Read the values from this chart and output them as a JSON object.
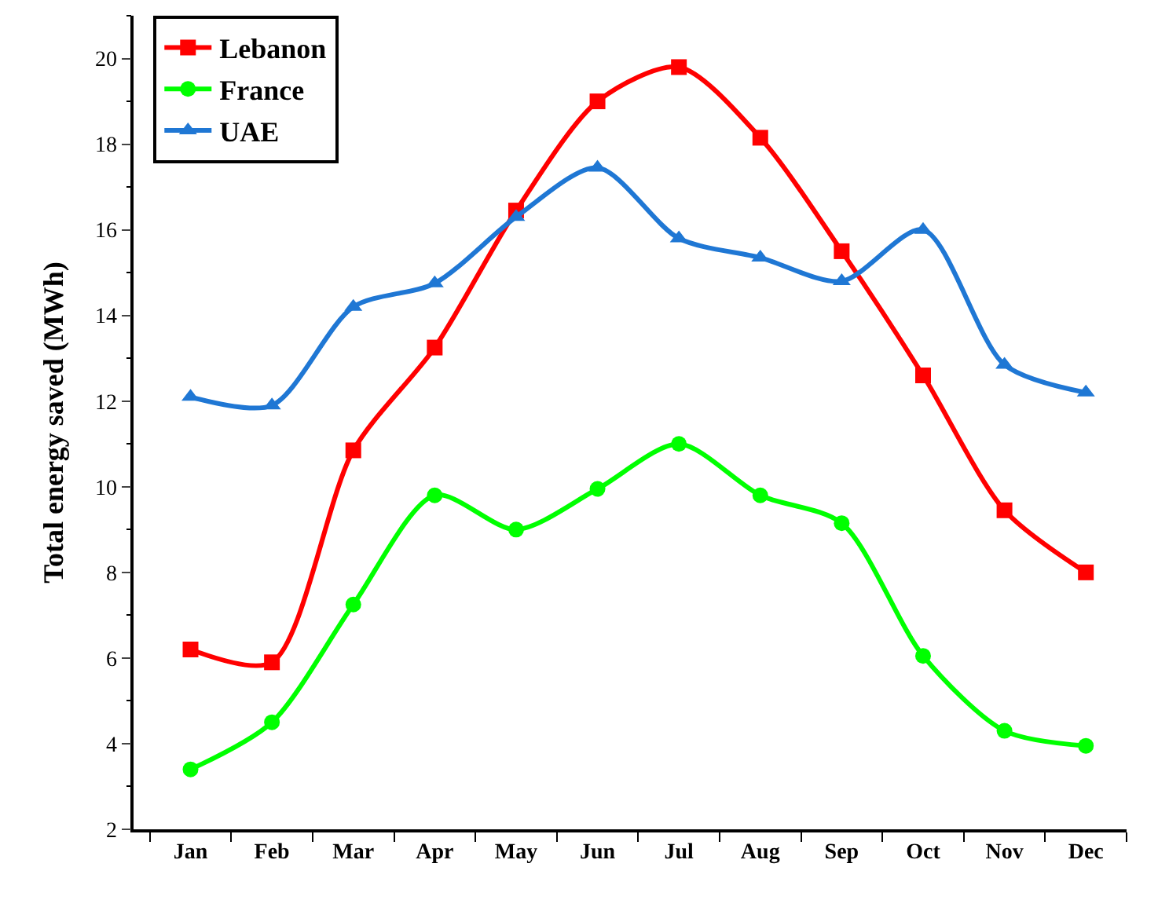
{
  "chart_data": {
    "type": "line",
    "ylabel": "Total energy saved (MWh)",
    "categories": [
      "Jan",
      "Feb",
      "Mar",
      "Apr",
      "May",
      "Jun",
      "Jul",
      "Aug",
      "Sep",
      "Oct",
      "Nov",
      "Dec"
    ],
    "series": [
      {
        "name": "Lebanon",
        "color": "#ff0000",
        "marker": "square",
        "values": [
          6.2,
          5.9,
          10.85,
          13.25,
          16.45,
          19.0,
          19.8,
          18.15,
          15.5,
          12.6,
          9.45,
          8.0
        ]
      },
      {
        "name": "France",
        "color": "#00ff00",
        "marker": "circle",
        "values": [
          3.4,
          4.5,
          7.25,
          9.8,
          9.0,
          9.95,
          11.0,
          9.8,
          9.15,
          6.05,
          4.3,
          3.95
        ]
      },
      {
        "name": "UAE",
        "color": "#1f77d4",
        "marker": "triangle",
        "values": [
          12.1,
          11.9,
          14.2,
          14.75,
          16.3,
          17.45,
          15.8,
          15.35,
          14.8,
          16.0,
          12.85,
          12.2
        ]
      }
    ],
    "ylim": [
      2,
      21
    ],
    "yticks": [
      2,
      4,
      6,
      8,
      10,
      12,
      14,
      16,
      18,
      20
    ],
    "legend": "top left",
    "line_style": "solid"
  }
}
